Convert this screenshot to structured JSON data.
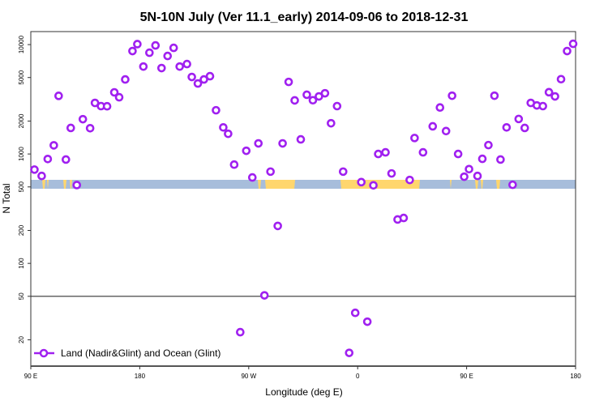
{
  "chart_data": {
    "type": "scatter",
    "title": "5N-10N July (Ver 11.1_early)   2014-09-06 to 2018-12-31",
    "xlabel": "Longitude (deg E)",
    "ylabel": "N Total",
    "x_units_note": "unwrapped longitude degrees: 90=90E, 180=180, 270=90W, 360=0, 450=90E, 540=180",
    "xlim": [
      90,
      540
    ],
    "ylim": [
      11.5,
      13150
    ],
    "yscale": "log",
    "x_ticks": [
      {
        "value": 90,
        "label": "90 E"
      },
      {
        "value": 180,
        "label": "180"
      },
      {
        "value": 270,
        "label": "90 W"
      },
      {
        "value": 360,
        "label": "0"
      },
      {
        "value": 450,
        "label": "90 E"
      },
      {
        "value": 540,
        "label": "180"
      }
    ],
    "y_ticks": [
      {
        "value": 10000,
        "label": "10000"
      },
      {
        "value": 5000,
        "label": "5000"
      },
      {
        "value": 2000,
        "label": "2000"
      },
      {
        "value": 1000,
        "label": "1000"
      },
      {
        "value": 500,
        "label": "500"
      },
      {
        "value": 200,
        "label": "200"
      },
      {
        "value": 100,
        "label": "100"
      },
      {
        "value": 50,
        "label": "50"
      },
      {
        "value": 20,
        "label": "20"
      }
    ],
    "reference_line_y": 50,
    "legend": {
      "position": "bottom-left",
      "label": "Land (Nadir&Glint) and Ocean (Glint)"
    },
    "series": [
      {
        "name": "Land (Nadir&Glint) and Ocean (Glint)",
        "color": "#A020F0",
        "points": [
          [
            93,
            720
          ],
          [
            99,
            630
          ],
          [
            104,
            900
          ],
          [
            109,
            1200
          ],
          [
            113,
            3400
          ],
          [
            119,
            890
          ],
          [
            123,
            1730
          ],
          [
            128,
            520
          ],
          [
            133,
            2080
          ],
          [
            139,
            1720
          ],
          [
            143,
            2930
          ],
          [
            148,
            2740
          ],
          [
            153,
            2730
          ],
          [
            159,
            3660
          ],
          [
            163,
            3300
          ],
          [
            168,
            4800
          ],
          [
            174,
            8730
          ],
          [
            178,
            10100
          ],
          [
            183,
            6300
          ],
          [
            188,
            8430
          ],
          [
            193,
            9830
          ],
          [
            198,
            6100
          ],
          [
            203,
            7870
          ],
          [
            208,
            9340
          ],
          [
            213,
            6300
          ],
          [
            219,
            6640
          ],
          [
            223,
            5060
          ],
          [
            228,
            4410
          ],
          [
            233,
            4800
          ],
          [
            238,
            5140
          ],
          [
            243,
            2510
          ],
          [
            249,
            1750
          ],
          [
            253,
            1530
          ],
          [
            258,
            800
          ],
          [
            263,
            23.5
          ],
          [
            268,
            1070
          ],
          [
            273,
            610
          ],
          [
            278,
            1250
          ],
          [
            283,
            51
          ],
          [
            288,
            690
          ],
          [
            294,
            220
          ],
          [
            298,
            1250
          ],
          [
            303,
            4560
          ],
          [
            308,
            3090
          ],
          [
            313,
            1360
          ],
          [
            318,
            3480
          ],
          [
            323,
            3100
          ],
          [
            328,
            3360
          ],
          [
            333,
            3590
          ],
          [
            338,
            1910
          ],
          [
            343,
            2740
          ],
          [
            348,
            690
          ],
          [
            353,
            15.2
          ],
          [
            358,
            35.3
          ],
          [
            363,
            553
          ],
          [
            368,
            29.3
          ],
          [
            373,
            517
          ],
          [
            377,
            1000
          ],
          [
            383,
            1035
          ],
          [
            388,
            664
          ],
          [
            393,
            252
          ],
          [
            398,
            260
          ],
          [
            403,
            579
          ],
          [
            407,
            1400
          ],
          [
            414,
            1035
          ],
          [
            422,
            1790
          ],
          [
            428,
            2660
          ],
          [
            433,
            1620
          ],
          [
            438,
            3410
          ],
          [
            443,
            1000
          ],
          [
            448,
            620
          ],
          [
            452,
            727
          ],
          [
            459,
            630
          ],
          [
            463,
            903
          ],
          [
            468,
            1206
          ],
          [
            473,
            3410
          ],
          [
            478,
            890
          ],
          [
            483,
            1750
          ],
          [
            488,
            523
          ],
          [
            493,
            2090
          ],
          [
            498,
            1730
          ],
          [
            503,
            2930
          ],
          [
            508,
            2780
          ],
          [
            513,
            2740
          ],
          [
            518,
            3670
          ],
          [
            523,
            3360
          ],
          [
            528,
            4830
          ],
          [
            533,
            8730
          ],
          [
            538,
            10170
          ]
        ]
      }
    ],
    "colors": {
      "ocean_band": "#A7BDDB",
      "land_band": "#FFD66E",
      "marker": "#A020F0"
    }
  }
}
